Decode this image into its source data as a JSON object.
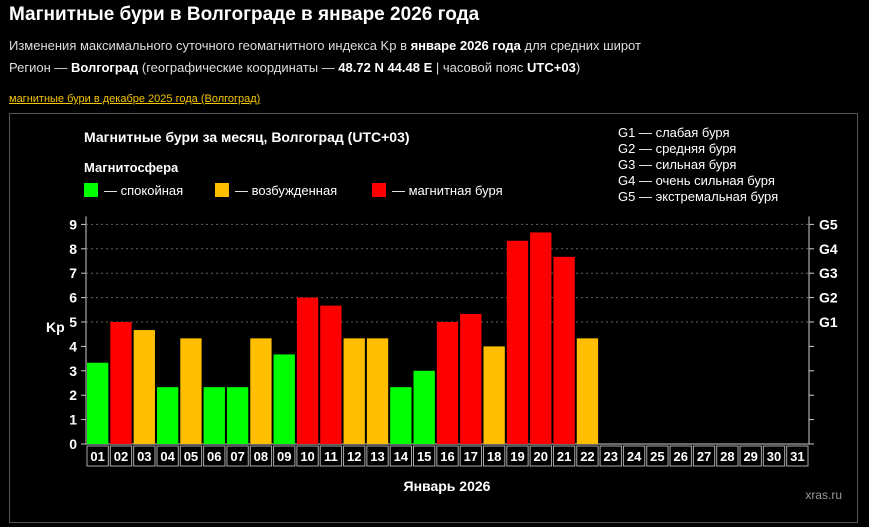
{
  "page": {
    "title": "Магнитные бури в Волгограде в январе 2026 года",
    "subtitle_pre": "Изменения максимального суточного геомагнитного индекса Kp в ",
    "subtitle_bold": "январе 2026 года",
    "subtitle_post": " для средних широт",
    "region_label": "Регион — ",
    "region_name": "Волгоград",
    "coords_pre": " (географические координаты — ",
    "coords": "48.72 N 44.48 E",
    "tz_pre": " | часовой пояс ",
    "tz": "UTC+03",
    "tz_post": ")",
    "prev_link": "магнитные бури в декабре 2025 года (Волгоград)"
  },
  "chart_data": {
    "type": "bar",
    "title": "Магнитные бури за месяц, Волгоград (UTC+03)",
    "xlabel": "Январь 2026",
    "ylabel": "Kp",
    "ylim": [
      0,
      9
    ],
    "categories": [
      "01",
      "02",
      "03",
      "04",
      "05",
      "06",
      "07",
      "08",
      "09",
      "10",
      "11",
      "12",
      "13",
      "14",
      "15",
      "16",
      "17",
      "18",
      "19",
      "20",
      "21",
      "22",
      "23",
      "24",
      "25",
      "26",
      "27",
      "28",
      "29",
      "30",
      "31"
    ],
    "values": [
      3.33,
      5.0,
      4.67,
      2.33,
      4.33,
      2.33,
      2.33,
      4.33,
      3.67,
      6.0,
      5.67,
      4.33,
      4.33,
      2.33,
      3.0,
      5.0,
      5.33,
      4.0,
      8.33,
      8.67,
      7.67,
      4.33,
      null,
      null,
      null,
      null,
      null,
      null,
      null,
      null,
      null
    ],
    "levels": [
      "quiet",
      "storm",
      "active",
      "quiet",
      "active",
      "quiet",
      "quiet",
      "active",
      "quiet",
      "storm",
      "storm",
      "active",
      "active",
      "quiet",
      "quiet",
      "storm",
      "storm",
      "active",
      "storm",
      "storm",
      "storm",
      "active",
      null,
      null,
      null,
      null,
      null,
      null,
      null,
      null,
      null
    ],
    "y_ticks": [
      "0",
      "1",
      "2",
      "3",
      "4",
      "5",
      "6",
      "7",
      "8",
      "9"
    ],
    "g_levels": [
      {
        "label": "G1",
        "kp": 5
      },
      {
        "label": "G2",
        "kp": 6
      },
      {
        "label": "G3",
        "kp": 7
      },
      {
        "label": "G4",
        "kp": 8
      },
      {
        "label": "G5",
        "kp": 9
      }
    ],
    "legend_title": "Магнитосфера",
    "legend": [
      {
        "key": "quiet",
        "label": "— спокойная",
        "color": "#00ff00"
      },
      {
        "key": "active",
        "label": "— возбужденная",
        "color": "#ffbf00"
      },
      {
        "key": "storm",
        "label": "— магнитная буря",
        "color": "#ff0000"
      }
    ],
    "g_legend": [
      "G1 — слабая буря",
      "G2 — средняя буря",
      "G3 — сильная буря",
      "G4 — очень сильная буря",
      "G5 — экстремальная буря"
    ],
    "watermark": "xras.ru",
    "grid": true
  }
}
